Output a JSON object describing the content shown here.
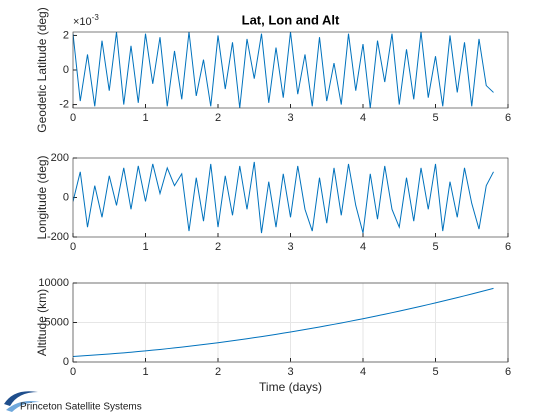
{
  "chart_data": [
    {
      "type": "line",
      "title": "Lat, Lon and Alt",
      "ylabel": "Geodetic Latitude (deg)",
      "exponent": {
        "base": "×10",
        "power": "-3"
      },
      "x": [
        0,
        0.1,
        0.2,
        0.3,
        0.4,
        0.5,
        0.6,
        0.7,
        0.8,
        0.9,
        1,
        1.1,
        1.2,
        1.3,
        1.4,
        1.5,
        1.6,
        1.7,
        1.8,
        1.9,
        2,
        2.1,
        2.2,
        2.3,
        2.4,
        2.5,
        2.6,
        2.7,
        2.8,
        2.9,
        3,
        3.1,
        3.2,
        3.3,
        3.4,
        3.5,
        3.6,
        3.7,
        3.8,
        3.9,
        4,
        4.1,
        4.2,
        4.3,
        4.4,
        4.5,
        4.6,
        4.7,
        4.8,
        4.9,
        5,
        5.1,
        5.2,
        5.3,
        5.4,
        5.5,
        5.6,
        5.7,
        5.8
      ],
      "values": [
        0.0021,
        -0.0018,
        0.0009,
        -0.0021,
        0.0017,
        -0.0012,
        0.0022,
        -0.002,
        0.0014,
        -0.0019,
        0.0021,
        -0.0008,
        0.0019,
        -0.0021,
        0.0011,
        -0.0017,
        0.0022,
        -0.0015,
        0.0006,
        -0.0021,
        0.002,
        -0.0011,
        0.0016,
        -0.0022,
        0.0018,
        -0.0005,
        0.0021,
        -0.0019,
        0.0013,
        -0.0016,
        0.0022,
        -0.0014,
        0.0009,
        -0.0021,
        0.0019,
        -0.0018,
        0.0004,
        -0.002,
        0.0021,
        -0.0012,
        0.0015,
        -0.0022,
        0.0017,
        -0.0007,
        0.0021,
        -0.002,
        0.0012,
        -0.0017,
        0.0022,
        -0.0016,
        0.0008,
        -0.0021,
        0.002,
        -0.0013,
        0.0016,
        -0.0021,
        0.0018,
        -0.0009,
        -0.0013
      ],
      "color": "#0072bd",
      "xlim": [
        0,
        6
      ],
      "xticks": [
        0,
        1,
        2,
        3,
        4,
        5,
        6
      ],
      "ylim": [
        -0.0022,
        0.0022
      ],
      "yticks": [
        {
          "value": -0.002,
          "label": "-2"
        },
        {
          "value": 0,
          "label": "0"
        },
        {
          "value": 0.002,
          "label": "2"
        }
      ],
      "grid": false
    },
    {
      "type": "line",
      "ylabel": "Longitude (deg)",
      "x": [
        0,
        0.1,
        0.2,
        0.3,
        0.4,
        0.5,
        0.6,
        0.7,
        0.8,
        0.9,
        1,
        1.1,
        1.2,
        1.3,
        1.4,
        1.5,
        1.6,
        1.7,
        1.8,
        1.9,
        2,
        2.1,
        2.2,
        2.3,
        2.4,
        2.5,
        2.6,
        2.7,
        2.8,
        2.9,
        3,
        3.1,
        3.2,
        3.3,
        3.4,
        3.5,
        3.6,
        3.7,
        3.8,
        3.9,
        4,
        4.1,
        4.2,
        4.3,
        4.4,
        4.5,
        4.6,
        4.7,
        4.8,
        4.9,
        5,
        5.1,
        5.2,
        5.3,
        5.4,
        5.5,
        5.6,
        5.7,
        5.8
      ],
      "values": [
        -20,
        130,
        -150,
        60,
        -100,
        110,
        -40,
        150,
        -60,
        160,
        -20,
        170,
        20,
        150,
        60,
        120,
        -170,
        100,
        -120,
        170,
        -150,
        110,
        -90,
        160,
        -60,
        180,
        -180,
        80,
        -150,
        120,
        -100,
        160,
        -60,
        -170,
        100,
        -130,
        150,
        -90,
        170,
        -40,
        -180,
        120,
        -110,
        160,
        -60,
        -150,
        100,
        -120,
        150,
        -60,
        170,
        -170,
        80,
        -100,
        150,
        -30,
        -160,
        60,
        130
      ],
      "color": "#0072bd",
      "xlim": [
        0,
        6
      ],
      "xticks": [
        0,
        1,
        2,
        3,
        4,
        5,
        6
      ],
      "ylim": [
        -200,
        200
      ],
      "yticks": [
        -200,
        0,
        200
      ],
      "grid": false
    },
    {
      "type": "line",
      "ylabel": "Altitude (km)",
      "xlabel": "Time (days)",
      "x": [
        0,
        0.1,
        0.2,
        0.3,
        0.4,
        0.5,
        0.6,
        0.7,
        0.8,
        0.9,
        1,
        1.1,
        1.2,
        1.3,
        1.4,
        1.5,
        1.6,
        1.7,
        1.8,
        1.9,
        2,
        2.1,
        2.2,
        2.3,
        2.4,
        2.5,
        2.6,
        2.7,
        2.8,
        2.9,
        3,
        3.1,
        3.2,
        3.3,
        3.4,
        3.5,
        3.6,
        3.7,
        3.8,
        3.9,
        4,
        4.1,
        4.2,
        4.3,
        4.4,
        4.5,
        4.6,
        4.7,
        4.8,
        4.9,
        5,
        5.1,
        5.2,
        5.3,
        5.4,
        5.5,
        5.6,
        5.7,
        5.8
      ],
      "values": [
        700,
        756,
        816,
        879,
        945,
        1014,
        1087,
        1162,
        1241,
        1324,
        1409,
        1498,
        1590,
        1685,
        1783,
        1885,
        1990,
        2098,
        2210,
        2324,
        2442,
        2563,
        2688,
        2815,
        2946,
        3080,
        3217,
        3358,
        3502,
        3649,
        3799,
        3953,
        4109,
        4269,
        4433,
        4599,
        4769,
        4942,
        5118,
        5297,
        5480,
        5666,
        5855,
        6048,
        6243,
        6442,
        6644,
        6850,
        7058,
        7270,
        7485,
        7703,
        7925,
        8150,
        8378,
        8609,
        8844,
        9081,
        9322
      ],
      "color": "#0072bd",
      "xlim": [
        0,
        6
      ],
      "xticks": [
        0,
        1,
        2,
        3,
        4,
        5,
        6
      ],
      "ylim": [
        0,
        10000
      ],
      "yticks": [
        0,
        5000,
        10000
      ],
      "grid": true
    }
  ],
  "footer": {
    "logo_text": "Princeton Satellite Systems"
  }
}
